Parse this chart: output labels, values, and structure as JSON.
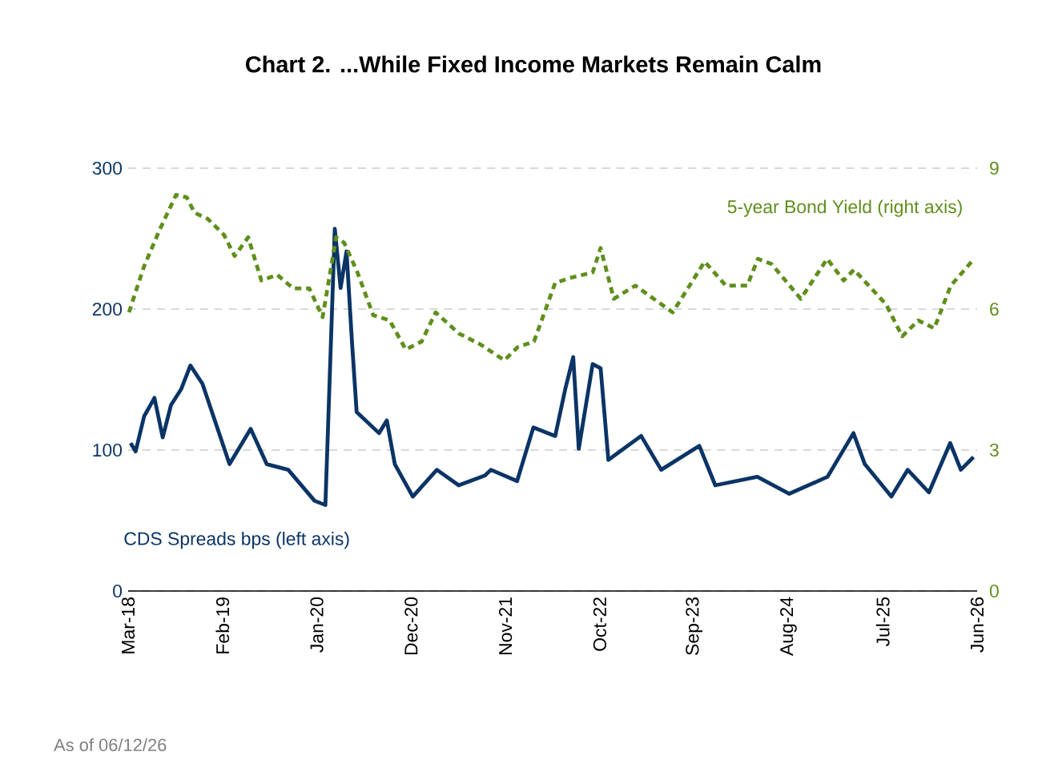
{
  "chart_data": {
    "type": "line",
    "title": "Chart 2. ...While Fixed Income Markets Remain Calm",
    "annotations": [
      "As of 06/12/26"
    ],
    "xlim": [
      "2018-03-01",
      "2026-06-01"
    ],
    "xticks": [
      {
        "value": "2018-03",
        "label": "Mar-18"
      },
      {
        "value": "2019-02",
        "label": "Feb-19"
      },
      {
        "value": "2020-01",
        "label": "Jan-20"
      },
      {
        "value": "2020-12",
        "label": "Dec-20"
      },
      {
        "value": "2021-11",
        "label": "Nov-21"
      },
      {
        "value": "2022-10",
        "label": "Oct-22"
      },
      {
        "value": "2023-09",
        "label": "Sep-23"
      },
      {
        "value": "2024-08",
        "label": "Aug-24"
      },
      {
        "value": "2025-07",
        "label": "Jul-25"
      },
      {
        "value": "2026-06",
        "label": "Jun-26"
      }
    ],
    "ylim": [
      0,
      300
    ],
    "yticks": [
      0,
      100,
      200,
      300
    ],
    "y2lim": [
      0,
      9
    ],
    "y2ticks": [
      0,
      3,
      6,
      9
    ],
    "grid": "y",
    "series": [
      {
        "name": "CDS Spreads  bps (left axis)",
        "color": "#0b3466",
        "line_style": "solid",
        "axis": "y",
        "x": [
          "2018-03-10",
          "2018-03-28",
          "2018-04-27",
          "2018-06-03",
          "2018-07-02",
          "2018-08-01",
          "2018-09-06",
          "2018-10-09",
          "2018-11-21",
          "2019-02-24",
          "2019-05-10",
          "2019-07-06",
          "2019-09-21",
          "2019-12-24",
          "2020-02-01",
          "2020-03-04",
          "2020-03-25",
          "2020-04-15",
          "2020-05-04",
          "2020-05-21",
          "2020-08-09",
          "2020-09-06",
          "2020-10-04",
          "2020-12-07",
          "2021-03-01",
          "2021-05-18",
          "2021-08-20",
          "2021-09-10",
          "2021-12-12",
          "2022-02-08",
          "2022-04-25",
          "2022-06-01",
          "2022-06-28",
          "2022-07-18",
          "2022-09-06",
          "2022-10-04",
          "2022-11-01",
          "2023-02-24",
          "2023-05-06",
          "2023-09-19",
          "2023-11-15",
          "2024-04-12",
          "2024-08-04",
          "2024-12-18",
          "2025-03-19",
          "2025-04-28",
          "2025-08-01",
          "2025-09-28",
          "2025-12-13",
          "2026-02-25",
          "2026-04-04",
          "2026-05-19"
        ],
        "values": [
          105,
          99,
          124,
          137,
          109,
          132,
          143,
          160,
          147,
          90,
          115,
          90,
          86,
          64,
          61,
          257,
          215,
          241,
          177,
          127,
          112,
          121,
          90,
          67,
          86,
          75,
          82,
          86,
          78,
          116,
          110,
          144,
          166,
          101,
          161,
          158,
          93,
          110,
          86,
          103,
          75,
          81,
          69,
          81,
          112,
          90,
          67,
          86,
          70,
          105,
          86,
          95
        ]
      },
      {
        "name": "5-year Bond Yield (right axis)",
        "color": "#5f8f1c",
        "line_style": "dashed",
        "axis": "y2",
        "x": [
          "2018-03-04",
          "2018-04-26",
          "2018-06-22",
          "2018-08-19",
          "2018-09-26",
          "2018-10-24",
          "2018-12-10",
          "2019-02-06",
          "2019-03-14",
          "2019-05-01",
          "2019-06-17",
          "2019-08-13",
          "2019-10-09",
          "2019-12-05",
          "2020-01-22",
          "2020-03-09",
          "2020-04-07",
          "2020-05-24",
          "2020-07-19",
          "2020-09-16",
          "2020-11-12",
          "2021-01-08",
          "2021-02-25",
          "2021-05-19",
          "2021-08-03",
          "2021-10-28",
          "2021-12-14",
          "2022-02-10",
          "2022-04-25",
          "2022-06-21",
          "2022-09-06",
          "2022-10-04",
          "2022-11-20",
          "2023-02-05",
          "2023-06-16",
          "2023-10-08",
          "2023-12-23",
          "2024-03-07",
          "2024-04-14",
          "2024-06-02",
          "2024-09-14",
          "2024-12-17",
          "2025-02-13",
          "2025-03-21",
          "2025-07-13",
          "2025-09-09",
          "2025-11-05",
          "2026-01-01",
          "2026-02-27",
          "2026-05-21"
        ],
        "values": [
          5.93,
          6.9,
          7.7,
          8.43,
          8.38,
          8.05,
          7.92,
          7.58,
          7.13,
          7.53,
          6.61,
          6.73,
          6.44,
          6.44,
          5.83,
          7.53,
          7.41,
          6.78,
          5.87,
          5.76,
          5.14,
          5.31,
          5.93,
          5.48,
          5.25,
          4.91,
          5.19,
          5.31,
          6.56,
          6.67,
          6.78,
          7.3,
          6.22,
          6.5,
          5.93,
          7.01,
          6.5,
          6.5,
          7.07,
          6.96,
          6.22,
          7.07,
          6.61,
          6.84,
          6.1,
          5.42,
          5.76,
          5.59,
          6.5,
          7.07
        ]
      }
    ]
  }
}
